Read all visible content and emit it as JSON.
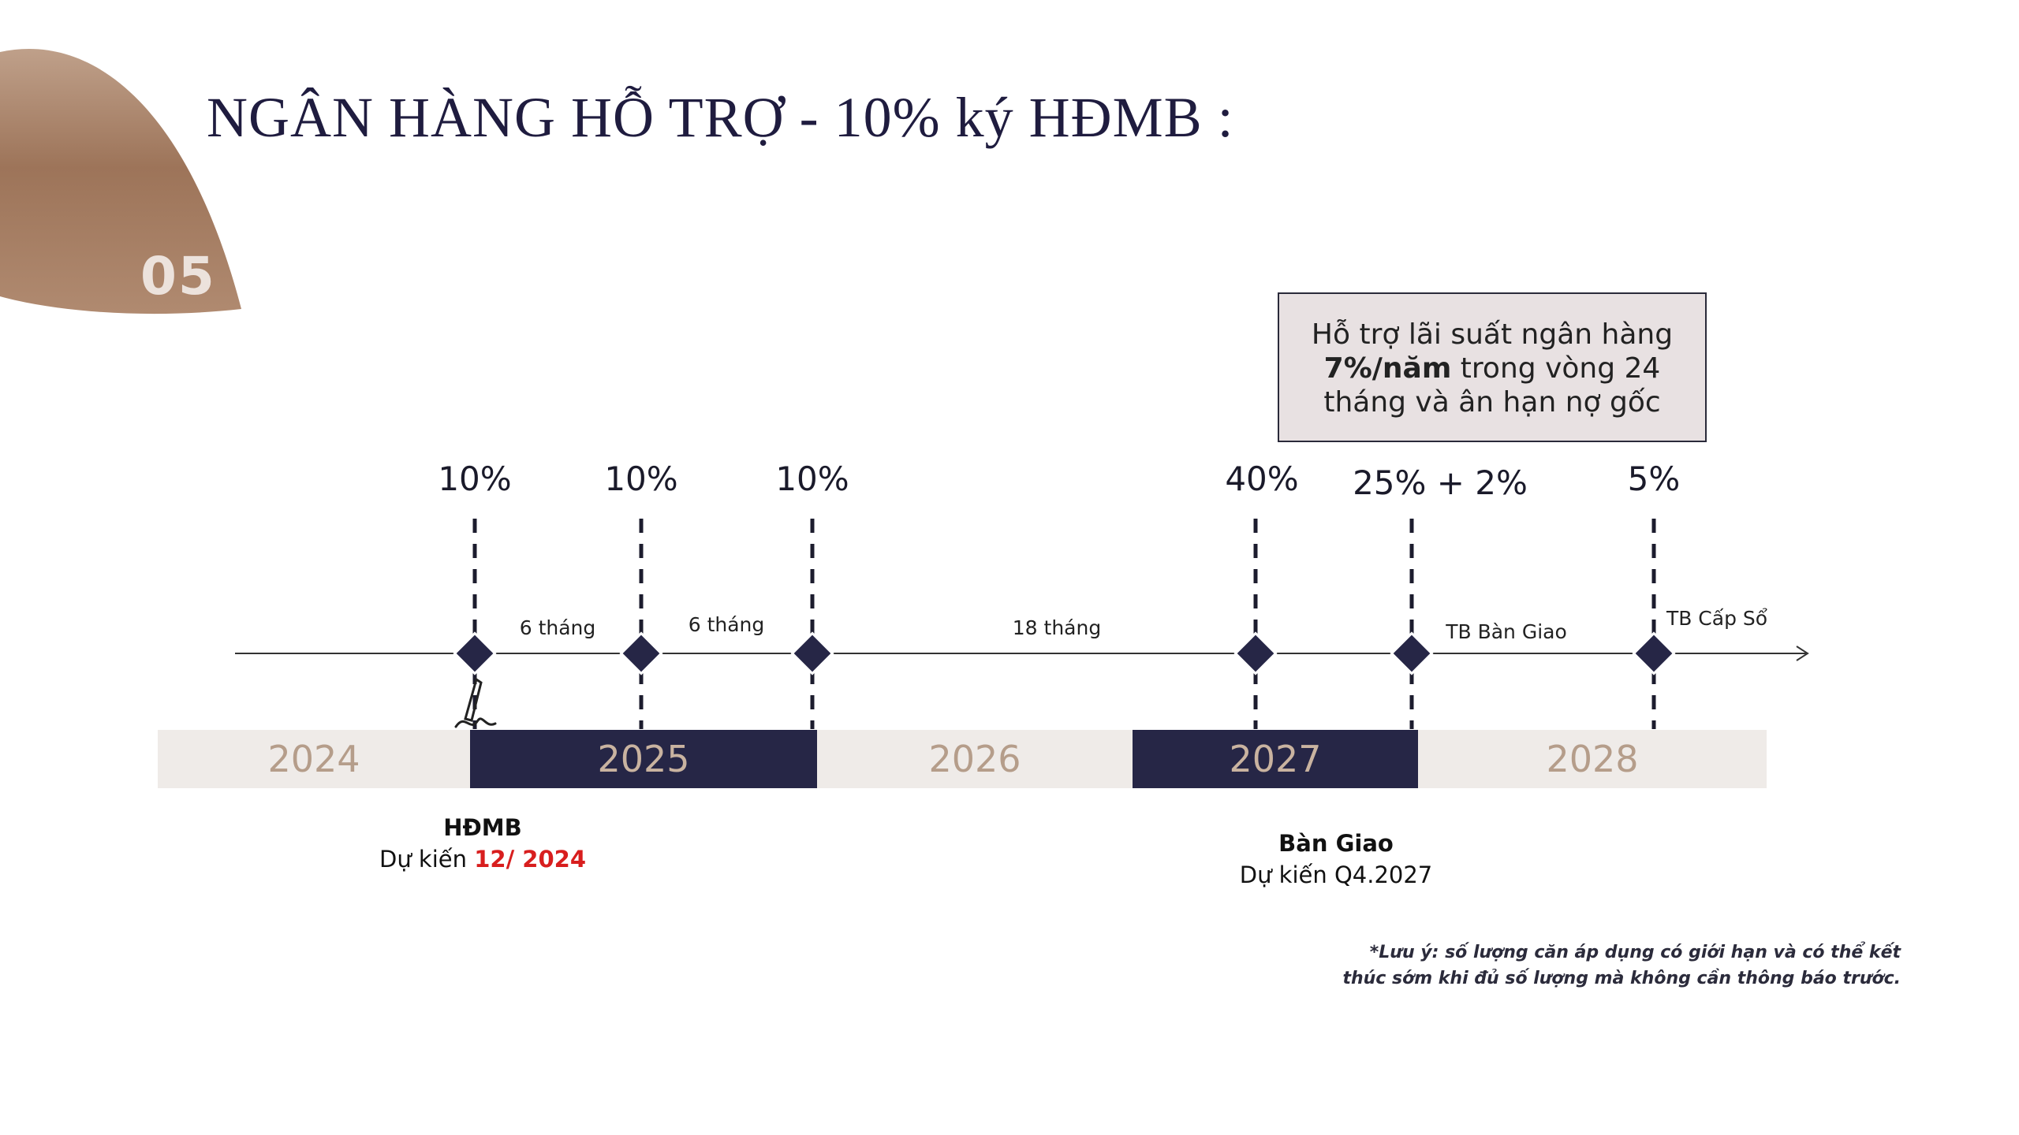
{
  "section_number": "05",
  "title": "NGÂN HÀNG HỖ TRỢ - 10% ký HĐMB :",
  "callout": {
    "line1": "Hỗ trợ lãi suất ngân hàng",
    "bold": "7%/năm",
    "line2_rest": " trong vòng 24",
    "line3": "tháng và ân hạn nợ gốc"
  },
  "timeline": {
    "payments": [
      "10%",
      "10%",
      "10%",
      "40%",
      "25% + 2%",
      "5%"
    ],
    "intervals": [
      "6 tháng",
      "6 tháng",
      "18 tháng",
      "TB Bàn Giao",
      "TB Cấp Sổ"
    ],
    "years": [
      "2024",
      "2025",
      "2026",
      "2027",
      "2028"
    ]
  },
  "milestones": {
    "hdmb": {
      "name": "HĐMB",
      "prefix": "Dự kiến ",
      "date": "12/ 2024"
    },
    "handover": {
      "name": "Bàn Giao",
      "expected": "Dự kiến Q4.2027"
    }
  },
  "note": {
    "line1": "*Lưu ý: số lượng căn áp dụng có giới hạn và có thể kết",
    "line2": "thúc sớm khi đủ số lượng mà không cần thông báo trước."
  },
  "colors": {
    "navy": "#262646",
    "brown_leaf": "#a07a60",
    "light_band": "#efebe8",
    "red": "#d81e1e"
  }
}
